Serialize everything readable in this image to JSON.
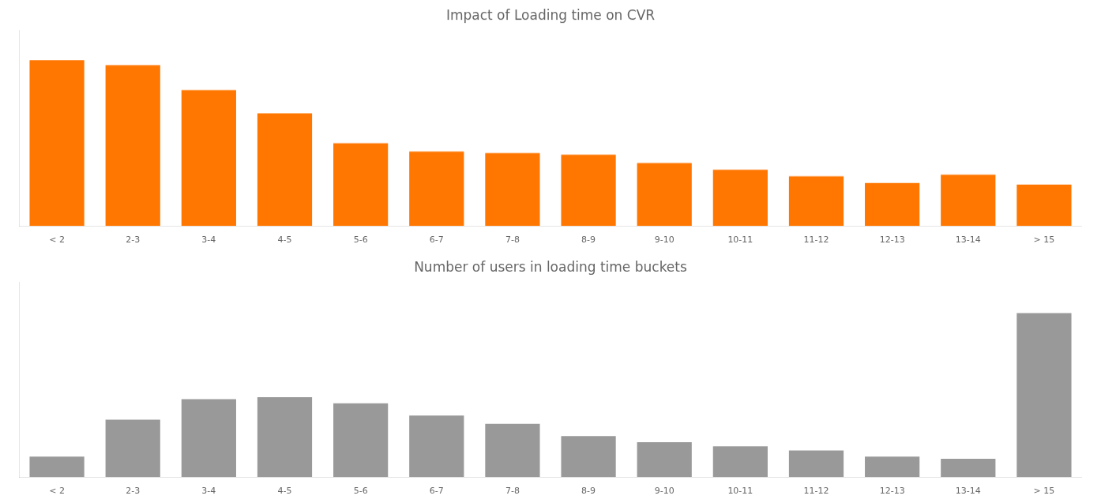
{
  "chart_data": [
    {
      "type": "bar",
      "title": "Impact of Loading time on CVR",
      "categories": [
        "< 2",
        "2-3",
        "3-4",
        "4-5",
        "5-6",
        "6-7",
        "7-8",
        "8-9",
        "9-10",
        "10-11",
        "11-12",
        "12-13",
        "13-14",
        "> 15"
      ],
      "values": [
        100,
        97,
        82,
        68,
        50,
        45,
        44,
        43,
        38,
        34,
        30,
        26,
        31,
        25
      ],
      "color": "#FF7700",
      "ylim": [
        0,
        118
      ],
      "tick_labels": "x",
      "grid": false
    },
    {
      "type": "bar",
      "title": "Number of users in loading time buckets",
      "categories": [
        "< 2",
        "2-3",
        "3-4",
        "4-5",
        "5-6",
        "6-7",
        "7-8",
        "8-9",
        "9-10",
        "10-11",
        "11-12",
        "12-13",
        "13-14",
        "> 15"
      ],
      "values": [
        10,
        28,
        38,
        39,
        36,
        30,
        26,
        20,
        17,
        15,
        13,
        10,
        9,
        80
      ],
      "color": "#999999",
      "ylim": [
        0,
        95
      ],
      "tick_labels": "x",
      "grid": false
    }
  ]
}
